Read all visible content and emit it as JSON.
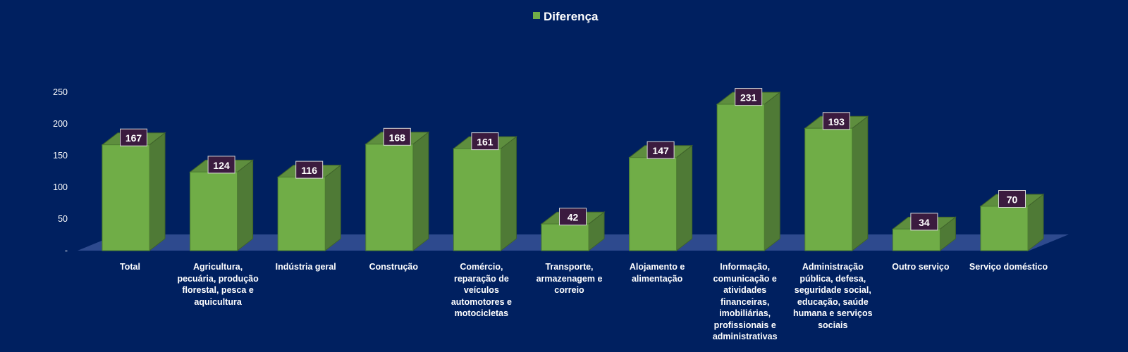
{
  "chart_data": {
    "type": "bar",
    "legend": {
      "position": "top-center"
    },
    "categories": [
      "Total",
      "Agricultura, pecuária, produção florestal, pesca e aquicultura",
      "Indústria geral",
      "Construção",
      "Comércio, reparação de veículos automotores e motocicletas",
      "Transporte, armazenagem e correio",
      "Alojamento e alimentação",
      "Informação, comunicação e atividades financeiras, imobiliárias, profissionais e administrativas",
      "Administração pública, defesa, seguridade social, educação, saúde humana e serviços sociais",
      "Outro serviço",
      "Serviço doméstico"
    ],
    "series": [
      {
        "name": "Diferença",
        "color": "#70AD47",
        "values": [
          167,
          124,
          116,
          168,
          161,
          42,
          147,
          231,
          193,
          34,
          70
        ]
      }
    ],
    "ylim": [
      0,
      250
    ],
    "yticks": [
      0,
      50,
      100,
      150,
      200,
      250
    ],
    "ytick_labels": [
      "-",
      "50",
      "100",
      "150",
      "200",
      "250"
    ],
    "grid": false,
    "three_d": true,
    "colors": {
      "background": "#002060",
      "floor": "#2E4A8E",
      "label_box_fill": "#3B1B3F",
      "label_box_border": "#D8D8D8"
    }
  }
}
